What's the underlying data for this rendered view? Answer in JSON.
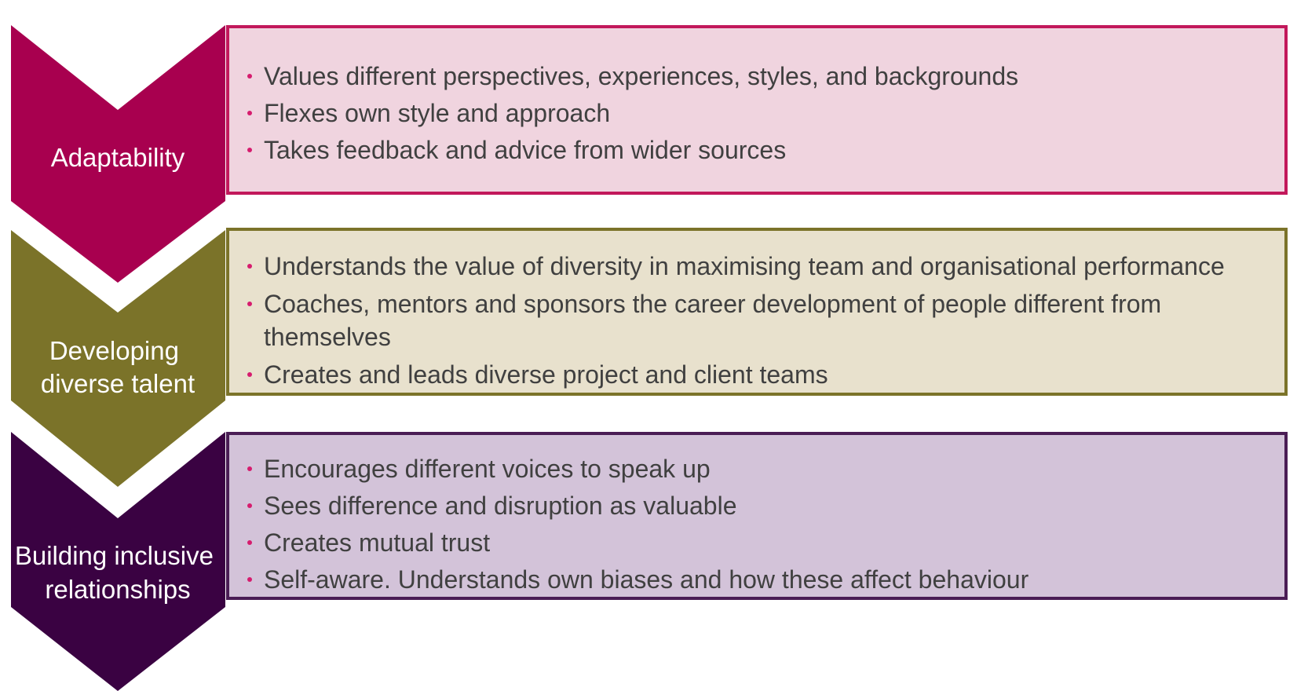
{
  "colors": {
    "bullet": "#d61c6e",
    "text": "#404040",
    "label_text": "#ffffff"
  },
  "rows": [
    {
      "label_lines": [
        "Adaptability"
      ],
      "chevron_color": "#a8004f",
      "box_fill": "#f0d4df",
      "box_border": "#c2185b",
      "items": [
        "Values different perspectives, experiences, styles, and backgrounds",
        "Flexes own style and approach",
        "Takes feedback and advice from wider sources"
      ]
    },
    {
      "label_lines": [
        "Developing",
        "diverse talent"
      ],
      "chevron_color": "#7b7329",
      "box_fill": "#e8e1cd",
      "box_border": "#7b7329",
      "items": [
        "Understands the value of diversity in maximising team and organisational performance",
        "Coaches, mentors and sponsors the career development of people different from themselves",
        "Creates and leads diverse project and client teams"
      ]
    },
    {
      "label_lines": [
        "Building inclusive",
        "relationships"
      ],
      "chevron_color": "#3a0242",
      "box_fill": "#d3c3d9",
      "box_border": "#4a1d55",
      "items": [
        "Encourages different voices to speak up",
        "Sees difference and disruption as valuable",
        "Creates mutual trust",
        "Self-aware. Understands own biases and how these affect behaviour"
      ]
    }
  ]
}
